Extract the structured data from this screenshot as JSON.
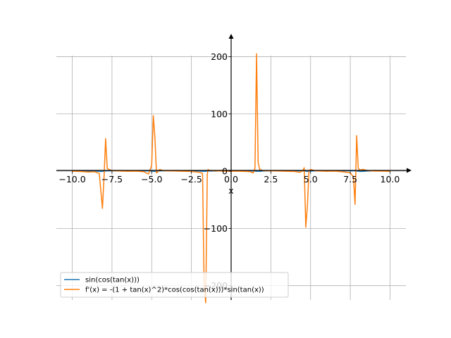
{
  "chart_data": {
    "type": "line",
    "xlabel": "x",
    "ylabel": "",
    "xlim": [
      -11.0,
      11.0
    ],
    "ylim": [
      -225,
      235
    ],
    "grid": true,
    "legend_placement": "lower-left",
    "x_ticks": [
      -10.0,
      -7.5,
      -5.0,
      -2.5,
      0.0,
      2.5,
      5.0,
      7.5,
      10.0
    ],
    "x_tick_labels": [
      "−10.0",
      "−7.5",
      "−5.0",
      "−2.5",
      "0.0",
      "2.5",
      "5.0",
      "7.5",
      "10.0"
    ],
    "y_ticks": [
      -200,
      -100,
      0,
      100,
      200
    ],
    "y_tick_labels": [
      "−200",
      "−100",
      "0",
      "100",
      "200"
    ],
    "series": [
      {
        "name": "sin(cos(tan(x)))",
        "color": "#1f77b4",
        "x": [
          -10.0,
          -9.0,
          -8.5,
          -8.2,
          -8.0,
          -7.9,
          -7.7,
          -7.5,
          -7.0,
          -6.5,
          -6.0,
          -5.5,
          -5.0,
          -4.8,
          -4.6,
          -4.4,
          -4.0,
          -3.5,
          -3.0,
          -2.5,
          -2.0,
          -1.8,
          -1.6,
          -1.4,
          -1.2,
          -1.0,
          -0.5,
          0.0,
          0.5,
          1.0,
          1.2,
          1.4,
          1.6,
          1.8,
          2.0,
          2.5,
          3.0,
          3.5,
          4.0,
          4.4,
          4.6,
          4.8,
          5.0,
          5.5,
          6.0,
          6.5,
          7.0,
          7.5,
          7.7,
          7.9,
          8.0,
          8.2,
          8.5,
          9.0,
          9.5,
          10.0
        ],
        "y": [
          0.8,
          0.5,
          0.1,
          -0.6,
          -0.3,
          0.4,
          0.7,
          0.8,
          0.5,
          0.7,
          0.8,
          0.6,
          0.2,
          -0.5,
          0.3,
          0.7,
          0.8,
          0.8,
          0.8,
          0.7,
          0.2,
          -0.4,
          -0.2,
          0.3,
          0.4,
          0.1,
          0.8,
          0.8,
          0.8,
          0.1,
          0.4,
          0.3,
          -0.2,
          -0.4,
          0.2,
          0.7,
          0.8,
          0.8,
          0.8,
          0.7,
          0.3,
          -0.5,
          0.2,
          0.6,
          0.8,
          0.7,
          0.5,
          0.8,
          0.7,
          0.4,
          -0.3,
          -0.6,
          0.1,
          0.5,
          0.8,
          0.8
        ]
      },
      {
        "name": "f'(x) = -(1 + tan(x)^2)*cos(cos(tan(x)))*sin(tan(x))",
        "color": "#ff7f0e",
        "x": [
          -10.0,
          -9.5,
          -9.0,
          -8.6,
          -8.3,
          -8.1,
          -8.0,
          -7.9,
          -7.8,
          -7.7,
          -7.5,
          -7.0,
          -6.5,
          -6.0,
          -5.5,
          -5.2,
          -5.0,
          -4.9,
          -4.8,
          -4.7,
          -4.6,
          -4.5,
          -4.3,
          -4.0,
          -3.5,
          -3.0,
          -2.5,
          -2.0,
          -1.8,
          -1.7,
          -1.6,
          -1.5,
          -1.45,
          -1.4,
          -1.2,
          -1.0,
          -0.5,
          0.0,
          0.5,
          1.0,
          1.2,
          1.4,
          1.5,
          1.6,
          1.7,
          1.8,
          2.0,
          2.5,
          3.0,
          3.5,
          4.0,
          4.3,
          4.5,
          4.6,
          4.7,
          4.8,
          4.9,
          5.0,
          5.3,
          5.6,
          6.0,
          6.5,
          7.0,
          7.5,
          7.7,
          7.8,
          7.9,
          8.0,
          8.1,
          8.3,
          8.6,
          9.0,
          9.5,
          10.0
        ],
        "y": [
          -0.3,
          -0.5,
          -1.5,
          -1.0,
          -4.0,
          -65.0,
          -10.0,
          57.0,
          5.0,
          3.0,
          1.0,
          0.2,
          -0.2,
          0.1,
          -1.0,
          -5.0,
          10.0,
          97.0,
          60.0,
          -3.0,
          -1.0,
          3.0,
          1.0,
          0.5,
          0.2,
          -0.2,
          -0.5,
          -2.0,
          -4.0,
          -200.0,
          -230.0,
          -5.0,
          3.0,
          1.5,
          1.0,
          0.5,
          0.1,
          0.0,
          -0.1,
          -0.5,
          -1.0,
          -3.0,
          5.0,
          205.0,
          15.0,
          3.0,
          1.0,
          0.5,
          0.2,
          -0.2,
          -0.5,
          -2.0,
          0.0,
          6.0,
          -98.0,
          -60.0,
          1.0,
          3.0,
          0.5,
          0.2,
          -0.2,
          0.1,
          -1.0,
          -3.0,
          -10.0,
          -58.0,
          62.0,
          5.0,
          2.0,
          3.0,
          1.0,
          0.3,
          0.1,
          -0.3
        ]
      }
    ]
  }
}
